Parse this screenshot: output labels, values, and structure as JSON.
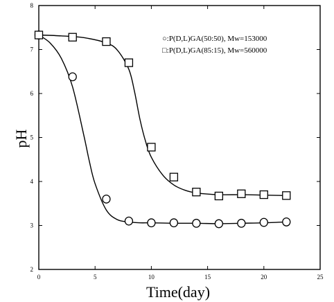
{
  "chart_data": {
    "type": "scatter",
    "title": "",
    "xlabel": "Time(day)",
    "ylabel": "pH",
    "xlim": [
      0,
      25
    ],
    "ylim": [
      2,
      8
    ],
    "x_ticks": [
      0,
      5,
      10,
      15,
      20,
      25
    ],
    "y_ticks": [
      2,
      3,
      4,
      5,
      6,
      7,
      8
    ],
    "grid": false,
    "legend_position": "top-right",
    "series": [
      {
        "name": "○:P(D,L)GA(50:50), Mw=153000",
        "marker": "circle",
        "color": "#000000",
        "x": [
          0,
          3,
          6,
          8,
          10,
          12,
          14,
          16,
          18,
          20,
          22
        ],
        "y": [
          7.33,
          6.38,
          3.6,
          3.1,
          3.06,
          3.06,
          3.05,
          3.04,
          3.05,
          3.07,
          3.08
        ],
        "fit_x": [
          0,
          1,
          2,
          3,
          4,
          4.5,
          5,
          6,
          7,
          8,
          9,
          10,
          12,
          14,
          16,
          18,
          20,
          22
        ],
        "fit_y": [
          7.33,
          7.15,
          6.8,
          6.15,
          5.05,
          4.45,
          3.95,
          3.35,
          3.13,
          3.08,
          3.06,
          3.06,
          3.05,
          3.05,
          3.04,
          3.05,
          3.06,
          3.08
        ]
      },
      {
        "name": "□:P(D,L)GA(85:15), Mw=560000",
        "marker": "square",
        "color": "#000000",
        "x": [
          0,
          3,
          6,
          8,
          10,
          12,
          14,
          16,
          18,
          20,
          22
        ],
        "y": [
          7.33,
          7.28,
          7.18,
          6.7,
          4.78,
          4.1,
          3.76,
          3.67,
          3.72,
          3.7,
          3.68
        ],
        "fit_x": [
          0,
          2,
          4,
          6,
          7,
          8,
          8.5,
          9,
          9.5,
          10,
          11,
          12,
          13,
          14,
          16,
          18,
          20,
          22
        ],
        "fit_y": [
          7.33,
          7.31,
          7.27,
          7.15,
          6.98,
          6.55,
          6.05,
          5.4,
          4.9,
          4.55,
          4.15,
          3.92,
          3.8,
          3.74,
          3.7,
          3.7,
          3.69,
          3.68
        ]
      }
    ]
  }
}
